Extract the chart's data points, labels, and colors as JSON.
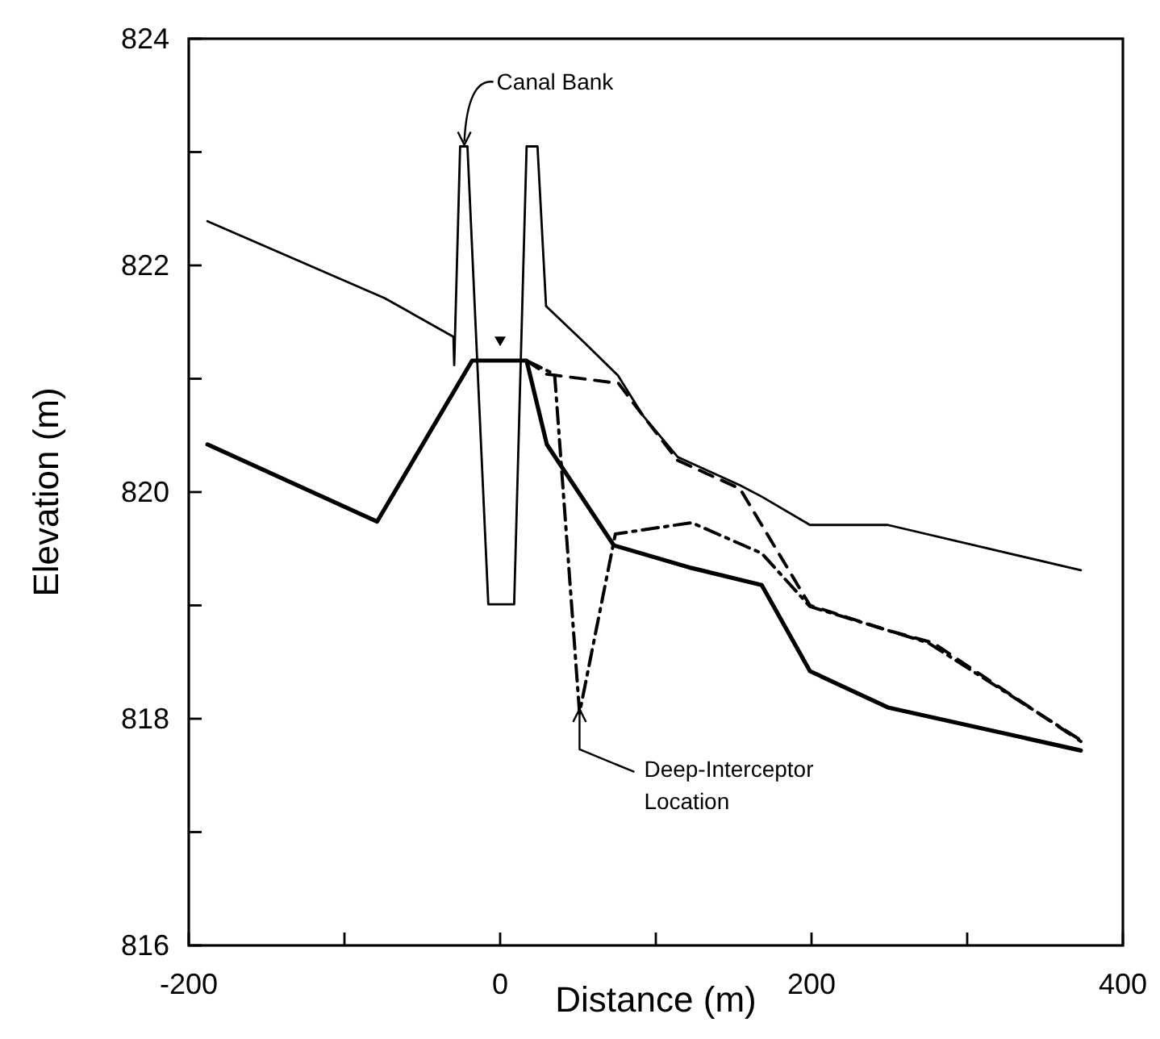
{
  "chart_data": {
    "type": "line",
    "xlabel": "Distance   (m)",
    "ylabel": "Elevation (m)",
    "xlim": [
      -200,
      400
    ],
    "ylim": [
      816,
      824
    ],
    "xticks": [
      -200,
      {
        "value": -100,
        "label": null
      },
      0,
      {
        "value": 100,
        "label": null
      },
      200,
      {
        "value": 300,
        "label": null
      },
      400
    ],
    "yticks": [
      816,
      {
        "value": 817,
        "label": null
      },
      818,
      {
        "value": 819,
        "label": null
      },
      820,
      {
        "value": 821,
        "label": null
      },
      822,
      {
        "value": 823,
        "label": null
      },
      824
    ],
    "grid": false,
    "marker": "none",
    "series": [
      {
        "color": "#000000",
        "line_style": "solid",
        "x": [
          -188,
          -74,
          -30,
          -29.5,
          -25.7,
          -21,
          -7.6,
          9,
          17,
          24,
          29.5,
          54,
          75.6,
          92,
          114,
          154,
          168,
          199,
          249,
          373
        ],
        "values": [
          822.39,
          821.71,
          821.37,
          821.12,
          823.05,
          823.05,
          819.01,
          819.01,
          823.05,
          823.05,
          821.64,
          821.32,
          821.03,
          820.67,
          820.31,
          820.06,
          819.96,
          819.71,
          819.71,
          819.31
        ]
      },
      {
        "color": "#000000",
        "line_style": "solid",
        "x": [
          -188,
          -79,
          -18,
          17,
          30,
          73,
          123,
          168,
          199,
          249,
          373
        ],
        "values": [
          820.42,
          819.74,
          821.16,
          821.16,
          820.42,
          819.53,
          819.33,
          819.18,
          818.42,
          818.1,
          817.72
        ]
      },
      {
        "color": "#000000",
        "line_style": "dashed",
        "x": [
          17,
          30,
          76,
          92,
          114,
          154,
          199,
          249,
          278,
          373
        ],
        "values": [
          821.16,
          821.04,
          820.96,
          820.67,
          820.28,
          820.03,
          819.0,
          818.78,
          818.67,
          817.8
        ]
      },
      {
        "color": "#000000",
        "line_style": "dashdot",
        "x": [
          17,
          35,
          51,
          74,
          123,
          168,
          199,
          249,
          275,
          373
        ],
        "values": [
          821.16,
          821.04,
          818.05,
          819.63,
          819.73,
          819.46,
          818.99,
          818.78,
          818.67,
          817.81
        ]
      }
    ],
    "annotations": [
      {
        "text": "Canal Bank",
        "x": -23,
        "y": 823.05
      },
      {
        "text": "Deep-Interceptor Location",
        "x": 51,
        "y": 818.1
      }
    ]
  }
}
